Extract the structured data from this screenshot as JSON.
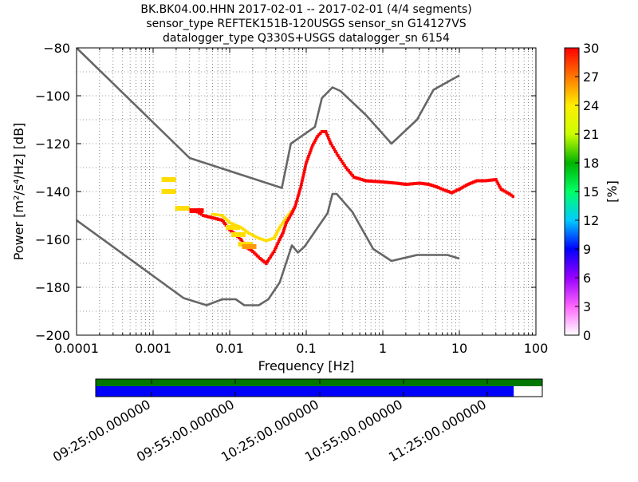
{
  "chart_data": [
    {
      "type": "heatmap",
      "title_lines": [
        "BK.BK04.00.HHN   2017-02-01 -- 2017-02-01  (4/4 segments)",
        "sensor_type REFTEK151B-120USGS sensor_sn G14127VS",
        "datalogger_type Q330S+USGS datalogger_sn 6154"
      ],
      "xlabel": "Frequency [Hz]",
      "ylabel": "Power [m²/s⁴/Hz] [dB]",
      "xscale": "log",
      "xlim": [
        0.0001,
        100
      ],
      "ylim": [
        -200,
        -80
      ],
      "xticks": [
        0.0001,
        0.001,
        0.01,
        0.1,
        1,
        10,
        100
      ],
      "xtick_labels": [
        "0.0001",
        "0.001",
        "0.01",
        "0.1",
        "1",
        "10",
        "100"
      ],
      "yticks": [
        -200,
        -180,
        -160,
        -140,
        -120,
        -100,
        -80
      ],
      "ytick_labels": [
        "−200",
        "−180",
        "−160",
        "−140",
        "−120",
        "−100",
        "−80"
      ],
      "grid": "dotted vertical and horizontal",
      "colorbar": {
        "label": "[%]",
        "range": [
          0,
          30
        ],
        "ticks": [
          "0",
          "3",
          "6",
          "9",
          "12",
          "15",
          "18",
          "21",
          "24",
          "27",
          "30"
        ],
        "colors": [
          "#ffffff",
          "#ff66ff",
          "#9900ff",
          "#0000ff",
          "#00ccff",
          "#00ff66",
          "#00b300",
          "#ccff00",
          "#ffee00",
          "#ff7700",
          "#ff0000"
        ]
      },
      "noise_models": [
        {
          "name": "high",
          "color": "#666666",
          "points": [
            [
              0.0001,
              -80
            ],
            [
              0.003,
              -126
            ],
            [
              0.048,
              -138.5
            ],
            [
              0.063,
              -120
            ],
            [
              0.13,
              -113
            ],
            [
              0.16,
              -101
            ],
            [
              0.22,
              -96.5
            ],
            [
              0.28,
              -98
            ],
            [
              0.6,
              -108
            ],
            [
              1.3,
              -120
            ],
            [
              2.8,
              -110
            ],
            [
              4.6,
              -97.5
            ],
            [
              10,
              -91.5
            ]
          ]
        },
        {
          "name": "low",
          "color": "#666666",
          "points": [
            [
              0.0001,
              -152
            ],
            [
              0.0025,
              -184.5
            ],
            [
              0.005,
              -187.5
            ],
            [
              0.008,
              -185
            ],
            [
              0.012,
              -185
            ],
            [
              0.0155,
              -187.5
            ],
            [
              0.024,
              -187.5
            ],
            [
              0.032,
              -185
            ],
            [
              0.045,
              -178
            ],
            [
              0.065,
              -162.5
            ],
            [
              0.078,
              -165.5
            ],
            [
              0.095,
              -163
            ],
            [
              0.19,
              -149
            ],
            [
              0.22,
              -141
            ],
            [
              0.25,
              -141
            ],
            [
              0.4,
              -148.5
            ],
            [
              0.75,
              -164
            ],
            [
              1.3,
              -169
            ],
            [
              2.8,
              -166.5
            ],
            [
              7,
              -166.5
            ],
            [
              10,
              -168
            ]
          ]
        }
      ],
      "psd_main": {
        "color": "#ff0000",
        "points": [
          [
            0.0036,
            -148
          ],
          [
            0.0045,
            -150
          ],
          [
            0.006,
            -151
          ],
          [
            0.008,
            -152
          ],
          [
            0.01,
            -156
          ],
          [
            0.012,
            -158
          ],
          [
            0.014,
            -160
          ],
          [
            0.016,
            -163
          ],
          [
            0.02,
            -165
          ],
          [
            0.025,
            -168
          ],
          [
            0.03,
            -170
          ],
          [
            0.033,
            -168
          ],
          [
            0.038,
            -165
          ],
          [
            0.045,
            -160
          ],
          [
            0.05,
            -157
          ],
          [
            0.055,
            -153
          ],
          [
            0.065,
            -149
          ],
          [
            0.072,
            -146
          ],
          [
            0.085,
            -138
          ],
          [
            0.1,
            -128
          ],
          [
            0.12,
            -121
          ],
          [
            0.14,
            -117
          ],
          [
            0.16,
            -115
          ],
          [
            0.18,
            -115
          ],
          [
            0.21,
            -120
          ],
          [
            0.26,
            -125
          ],
          [
            0.33,
            -130
          ],
          [
            0.42,
            -134
          ],
          [
            0.6,
            -135.5
          ],
          [
            1,
            -136
          ],
          [
            1.5,
            -136.5
          ],
          [
            2,
            -137
          ],
          [
            3,
            -136.5
          ],
          [
            4,
            -137
          ],
          [
            5,
            -138
          ],
          [
            6.5,
            -139.5
          ],
          [
            8,
            -140.5
          ],
          [
            10,
            -139
          ],
          [
            13,
            -137
          ],
          [
            17,
            -135.5
          ],
          [
            22,
            -135.5
          ],
          [
            30,
            -135
          ],
          [
            35,
            -139
          ],
          [
            45,
            -141
          ],
          [
            53,
            -142.5
          ]
        ]
      },
      "psd_secondary": {
        "color": "#ffdd00",
        "points": [
          [
            0.006,
            -149.5
          ],
          [
            0.008,
            -150
          ],
          [
            0.01,
            -153
          ],
          [
            0.014,
            -155
          ],
          [
            0.018,
            -157.5
          ],
          [
            0.024,
            -159.5
          ],
          [
            0.03,
            -160.5
          ],
          [
            0.038,
            -159.5
          ],
          [
            0.045,
            -155
          ],
          [
            0.055,
            -151
          ],
          [
            0.07,
            -147
          ]
        ]
      },
      "scatter_blocks": [
        {
          "x": 0.0016,
          "y": -135,
          "color": "#ffdd00"
        },
        {
          "x": 0.0016,
          "y": -140,
          "color": "#ffdd00"
        },
        {
          "x": 0.0024,
          "y": -147,
          "color": "#ffdd00"
        },
        {
          "x": 0.0037,
          "y": -148,
          "color": "#ff0000"
        },
        {
          "x": 0.011,
          "y": -155,
          "color": "#ffdd00"
        },
        {
          "x": 0.013,
          "y": -158,
          "color": "#ffdd00"
        },
        {
          "x": 0.016,
          "y": -162,
          "color": "#ffdd00"
        },
        {
          "x": 0.018,
          "y": -163,
          "color": "#ff9900"
        }
      ]
    },
    {
      "type": "timeline",
      "tick_labels": [
        "09:25:00.000000",
        "09:55:00.000000",
        "10:25:00.000000",
        "10:55:00.000000",
        "11:25:00.000000"
      ],
      "green_bar": {
        "coverage": 1.0,
        "color": "#007700"
      },
      "blue_bar": {
        "coverage": 0.936,
        "color": "#0000ff"
      }
    }
  ]
}
